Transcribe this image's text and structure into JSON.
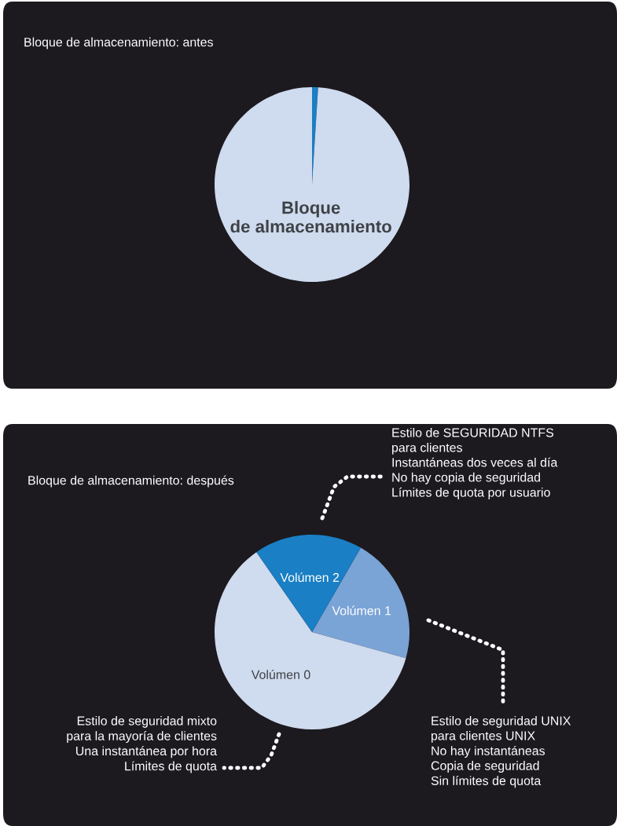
{
  "chart_data": [
    {
      "type": "pie",
      "title": "Bloque de almacenamiento: antes",
      "categories": [
        null,
        "Bloque\nde almacenamiento"
      ],
      "values": [
        1,
        99
      ],
      "colors": [
        "#1a7fc4",
        "#cfdbee"
      ]
    },
    {
      "type": "pie",
      "title": "Bloque de almacenamiento: después",
      "categories": [
        "Volúmen 1",
        "Volúmen 0",
        "Volúmen 2"
      ],
      "values": [
        21,
        61,
        18
      ],
      "colors": [
        "#7aa3d6",
        "#cfdbee",
        "#1a7fc4"
      ],
      "annotations": [
        "Estilo de SEGURIDAD NTFS\npara clientes\nInstantáneas dos veces al día\nNo hay copia de seguridad\nLímites de quota por usuario",
        "Estilo de seguridad UNIX\npara clientes UNIX\nNo hay instantáneas\nCopia de seguridad\nSin límites de quota",
        "Estilo de seguridad mixto\npara la mayoría de clientes\nUna instantánea por hora\nLímites de quota"
      ]
    }
  ]
}
